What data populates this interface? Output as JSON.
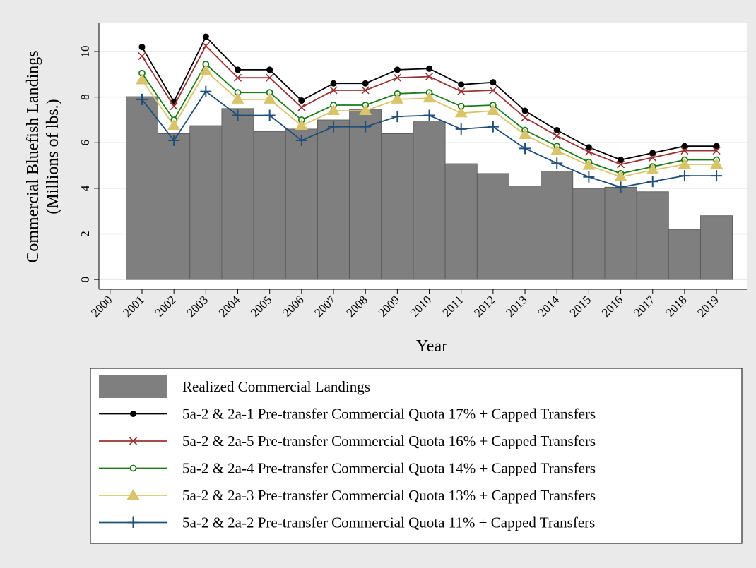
{
  "chart_data": {
    "type": "combo",
    "x_label": "Year",
    "y_label": [
      "Commercial Bluefish Landings",
      "(Millions of lbs.)"
    ],
    "x": [
      2001,
      2002,
      2003,
      2004,
      2005,
      2006,
      2007,
      2008,
      2009,
      2010,
      2011,
      2012,
      2013,
      2014,
      2015,
      2016,
      2017,
      2018,
      2019
    ],
    "xlim": [
      1999.65,
      2019.95
    ],
    "xticks": [
      2000,
      2001,
      2002,
      2003,
      2004,
      2005,
      2006,
      2007,
      2008,
      2009,
      2010,
      2011,
      2012,
      2013,
      2014,
      2015,
      2016,
      2017,
      2018,
      2019
    ],
    "ylim": [
      -0.43,
      11.24
    ],
    "yticks": [
      0,
      2,
      4,
      6,
      8,
      10
    ],
    "grid": true,
    "series": [
      {
        "name": "Realized Commercial Landings",
        "type": "bar",
        "color": "#7f7f7f",
        "values": [
          8.02,
          6.4,
          6.75,
          7.5,
          6.5,
          6.6,
          7.0,
          7.47,
          6.4,
          6.95,
          5.08,
          4.65,
          4.1,
          4.75,
          4.0,
          4.05,
          3.85,
          2.2,
          2.8
        ]
      },
      {
        "name": "5a-2 & 2a-1 Pre-transfer Commercial Quota 17% + Capped Transfers",
        "type": "line",
        "marker": "circle",
        "color": "#000000",
        "values": [
          10.2,
          7.8,
          10.65,
          9.2,
          9.2,
          7.85,
          8.6,
          8.6,
          9.2,
          9.25,
          8.55,
          8.65,
          7.4,
          6.55,
          5.8,
          5.25,
          5.55,
          5.85,
          5.85
        ]
      },
      {
        "name": "5a-2 & 2a-5 Pre-transfer Commercial Quota 16% + Capped Transfers",
        "type": "line",
        "marker": "x",
        "color": "#993333",
        "values": [
          9.8,
          7.6,
          10.25,
          8.85,
          8.85,
          7.55,
          8.3,
          8.3,
          8.85,
          8.9,
          8.25,
          8.3,
          7.1,
          6.3,
          5.6,
          5.05,
          5.35,
          5.65,
          5.65
        ]
      },
      {
        "name": "5a-2 & 2a-4 Pre-transfer Commercial Quota 14% + Capped Transfers",
        "type": "line",
        "marker": "hollow-circle",
        "color": "#1a7a1a",
        "values": [
          9.05,
          7.0,
          9.45,
          8.2,
          8.2,
          7.0,
          7.65,
          7.65,
          8.15,
          8.2,
          7.6,
          7.65,
          6.55,
          5.85,
          5.15,
          4.65,
          4.95,
          5.25,
          5.25
        ]
      },
      {
        "name": "5a-2 & 2a-3 Pre-transfer Commercial Quota 13% + Capped Transfers",
        "type": "line",
        "marker": "triangle",
        "color": "#d9c46a",
        "values": [
          8.75,
          6.75,
          9.15,
          7.9,
          7.9,
          6.75,
          7.4,
          7.4,
          7.9,
          7.95,
          7.3,
          7.4,
          6.35,
          5.65,
          5.0,
          4.5,
          4.8,
          5.05,
          5.05
        ]
      },
      {
        "name": "5a-2 & 2a-2 Pre-transfer Commercial Quota 11% + Capped Transfers",
        "type": "line",
        "marker": "plus",
        "color": "#1f4e79",
        "values": [
          7.9,
          6.1,
          8.25,
          7.2,
          7.2,
          6.1,
          6.7,
          6.7,
          7.15,
          7.2,
          6.6,
          6.7,
          5.75,
          5.1,
          4.5,
          4.05,
          4.3,
          4.55,
          4.55
        ]
      }
    ]
  }
}
